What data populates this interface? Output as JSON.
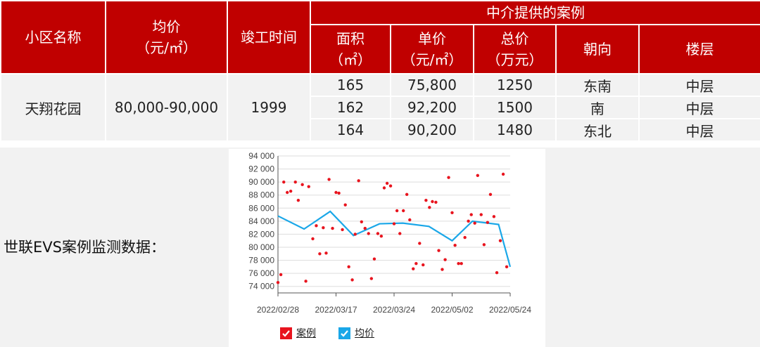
{
  "table": {
    "header": {
      "community": "小区名称",
      "avg_price": "均价",
      "avg_price_unit": "（元/㎡）",
      "built_year": "竣工时间",
      "agency_cases": "中介提供的案例",
      "area": "面积",
      "area_unit": "（㎡）",
      "unit_price": "单价",
      "unit_price_unit": "（元/㎡）",
      "total_price": "总价",
      "total_price_unit": "（万元）",
      "orientation": "朝向",
      "floor": "楼层"
    },
    "community_name": "天翔花园",
    "avg_price_range": "80,000-90,000",
    "built_year_value": "1999",
    "cases": [
      {
        "area": "165",
        "unit_price": "75,800",
        "total_price": "1250",
        "orientation": "东南",
        "floor": "中层"
      },
      {
        "area": "162",
        "unit_price": "92,200",
        "total_price": "1500",
        "orientation": "南",
        "floor": "中层"
      },
      {
        "area": "164",
        "unit_price": "90,200",
        "total_price": "1480",
        "orientation": "东北",
        "floor": "中层"
      }
    ]
  },
  "evs_label": "世联EVS案例监测数据：",
  "colors": {
    "header_red": "#c00000",
    "case_dot": "#e8141e",
    "avg_line": "#1aa7e8",
    "row_bg": "#f2f2f2"
  },
  "chart_data": {
    "type": "scatter",
    "title": "",
    "xlabel": "",
    "ylabel": "",
    "x_ticks": [
      "2022/02/28",
      "2022/03/17",
      "2022/03/24",
      "2022/05/02",
      "2022/05/24"
    ],
    "y_ticks": [
      "74 000",
      "76 000",
      "78 000",
      "80 000",
      "82 000",
      "84 000",
      "86 000",
      "88 000",
      "90 000",
      "92 000",
      "94 000"
    ],
    "ylim": [
      73000,
      94000
    ],
    "grid": true,
    "legend": {
      "placement": "bottom",
      "entries": [
        "案例",
        "均价"
      ]
    },
    "series": [
      {
        "name": "案例",
        "type": "scatter",
        "points": [
          [
            0.0,
            74600
          ],
          [
            0.5,
            75800
          ],
          [
            1.0,
            90000
          ],
          [
            1.6,
            88400
          ],
          [
            2.2,
            88600
          ],
          [
            3.0,
            90000
          ],
          [
            3.5,
            87200
          ],
          [
            4.2,
            89600
          ],
          [
            4.8,
            74800
          ],
          [
            5.3,
            89300
          ],
          [
            6.0,
            81300
          ],
          [
            6.6,
            83300
          ],
          [
            7.2,
            79000
          ],
          [
            7.8,
            83000
          ],
          [
            8.3,
            79100
          ],
          [
            8.8,
            90400
          ],
          [
            9.4,
            82900
          ],
          [
            10.0,
            88400
          ],
          [
            10.5,
            88300
          ],
          [
            11.1,
            82700
          ],
          [
            11.6,
            86500
          ],
          [
            12.2,
            77000
          ],
          [
            12.8,
            75000
          ],
          [
            13.3,
            82000
          ],
          [
            13.9,
            90200
          ],
          [
            14.4,
            83900
          ],
          [
            15.0,
            82900
          ],
          [
            15.6,
            82100
          ],
          [
            16.1,
            75200
          ],
          [
            16.6,
            78200
          ],
          [
            17.2,
            82100
          ],
          [
            17.8,
            81700
          ],
          [
            18.3,
            89100
          ],
          [
            18.8,
            89800
          ],
          [
            19.4,
            89400
          ],
          [
            20.0,
            83600
          ],
          [
            20.5,
            85600
          ],
          [
            21.0,
            82100
          ],
          [
            21.6,
            85600
          ],
          [
            22.2,
            88100
          ],
          [
            22.7,
            84200
          ],
          [
            23.3,
            76700
          ],
          [
            23.8,
            77500
          ],
          [
            24.4,
            80600
          ],
          [
            25.0,
            77300
          ],
          [
            25.5,
            87200
          ],
          [
            26.1,
            86100
          ],
          [
            26.6,
            87000
          ],
          [
            27.2,
            86900
          ],
          [
            27.7,
            79500
          ],
          [
            28.3,
            76600
          ],
          [
            28.8,
            78100
          ],
          [
            29.4,
            90700
          ],
          [
            30.0,
            85300
          ],
          [
            30.5,
            80300
          ],
          [
            31.1,
            77500
          ],
          [
            31.6,
            77500
          ],
          [
            32.2,
            81500
          ],
          [
            32.8,
            84000
          ],
          [
            33.3,
            85000
          ],
          [
            33.9,
            83700
          ],
          [
            34.4,
            91000
          ],
          [
            35.0,
            85000
          ],
          [
            35.5,
            80400
          ],
          [
            36.1,
            83800
          ],
          [
            36.6,
            88100
          ],
          [
            37.2,
            84700
          ],
          [
            37.7,
            76100
          ],
          [
            38.3,
            81000
          ],
          [
            38.8,
            91200
          ],
          [
            39.4,
            77000
          ]
        ]
      },
      {
        "name": "均价",
        "type": "line",
        "points": [
          [
            0,
            84800
          ],
          [
            4.5,
            82800
          ],
          [
            9.0,
            85500
          ],
          [
            13.0,
            81800
          ],
          [
            17.5,
            83600
          ],
          [
            21.5,
            83700
          ],
          [
            26.0,
            83200
          ],
          [
            30.0,
            81000
          ],
          [
            33.5,
            84000
          ],
          [
            38.0,
            83500
          ],
          [
            40.0,
            77000
          ]
        ]
      }
    ]
  }
}
